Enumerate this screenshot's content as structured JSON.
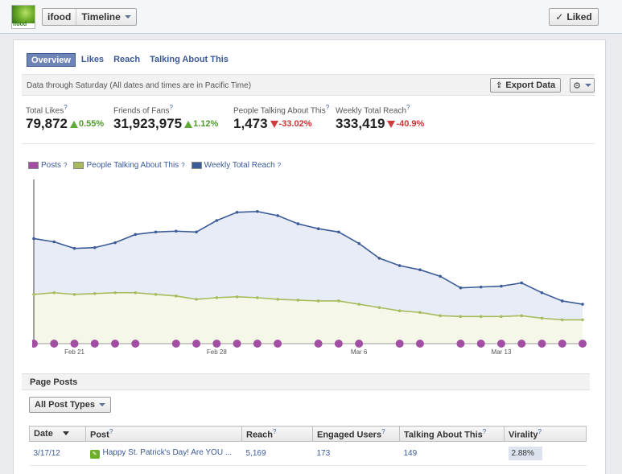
{
  "header": {
    "page_name": "ifood",
    "view_label": "Timeline",
    "thumb_text": "ifood",
    "liked_label": "Liked"
  },
  "tabs": [
    "Overview",
    "Likes",
    "Reach",
    "Talking About This"
  ],
  "info": {
    "text": "Data through Saturday (All dates and times are in Pacific Time)",
    "export_label": "Export Data"
  },
  "stats": [
    {
      "label": "Total Likes",
      "value": "79,872",
      "change": "0.55%",
      "dir": "up"
    },
    {
      "label": "Friends of Fans",
      "value": "31,923,975",
      "change": "1.12%",
      "dir": "up"
    },
    {
      "label": "People Talking About This",
      "value": "1,473",
      "change": "-33.02%",
      "dir": "down"
    },
    {
      "label": "Weekly Total Reach",
      "value": "333,419",
      "change": "-40.9%",
      "dir": "down"
    }
  ],
  "legend": [
    "Posts",
    "People Talking About This",
    "Weekly Total Reach"
  ],
  "colors": {
    "posts": "#a24ea3",
    "talking": "#a7bb5e",
    "reach": "#3c5c98",
    "reach_fill": "#e8ecf6",
    "talking_fill": "#f5f7e8"
  },
  "chart_data": {
    "type": "line",
    "x_tick_labels": [
      "Feb 21",
      "Feb 28",
      "Mar 6",
      "Mar 13"
    ],
    "x_tick_index": [
      2,
      9,
      16,
      23
    ],
    "series": [
      {
        "name": "Weekly Total Reach",
        "values": [
          0.64,
          0.62,
          0.58,
          0.585,
          0.615,
          0.665,
          0.68,
          0.685,
          0.68,
          0.75,
          0.8,
          0.805,
          0.78,
          0.73,
          0.7,
          0.68,
          0.61,
          0.52,
          0.475,
          0.45,
          0.41,
          0.34,
          0.345,
          0.35,
          0.37,
          0.31,
          0.26,
          0.24
        ]
      },
      {
        "name": "People Talking About This",
        "values": [
          0.3,
          0.31,
          0.3,
          0.305,
          0.31,
          0.31,
          0.3,
          0.29,
          0.27,
          0.28,
          0.285,
          0.28,
          0.27,
          0.265,
          0.26,
          0.26,
          0.24,
          0.22,
          0.2,
          0.19,
          0.17,
          0.165,
          0.165,
          0.165,
          0.17,
          0.155,
          0.145,
          0.145
        ]
      },
      {
        "name": "Posts",
        "values": [
          1,
          1,
          1,
          1,
          1,
          1,
          0,
          1,
          1,
          1,
          1,
          1,
          1,
          0,
          1,
          1,
          1,
          0,
          1,
          1,
          0,
          1,
          1,
          1,
          1,
          1,
          1,
          1
        ]
      }
    ]
  },
  "posts_section": {
    "title": "Page Posts",
    "filter_label": "All Post Types",
    "columns": [
      "Date",
      "Post",
      "Reach",
      "Engaged Users",
      "Talking About This",
      "Virality"
    ],
    "rows": [
      {
        "date": "3/17/12",
        "post": "Happy St. Patrick's Day! Are YOU ...",
        "reach": "5,169",
        "engaged": "173",
        "talking": "149",
        "virality": "2.88%"
      }
    ]
  }
}
